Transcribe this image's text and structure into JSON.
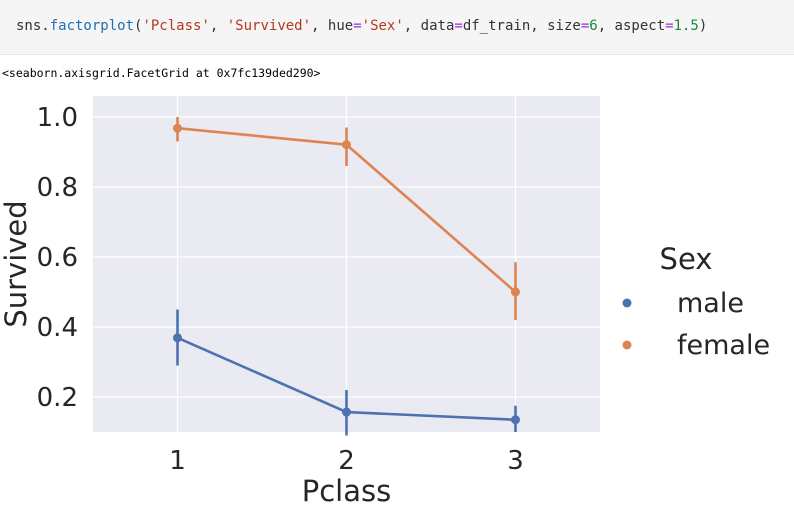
{
  "code_cell": {
    "segments": [
      {
        "text": "sns.",
        "cls": ""
      },
      {
        "text": "factorplot",
        "cls": "tok-fn"
      },
      {
        "text": "(",
        "cls": ""
      },
      {
        "text": "'Pclass'",
        "cls": "tok-str"
      },
      {
        "text": ", ",
        "cls": ""
      },
      {
        "text": "'Survived'",
        "cls": "tok-str"
      },
      {
        "text": ", hue",
        "cls": ""
      },
      {
        "text": "=",
        "cls": "tok-op"
      },
      {
        "text": "'Sex'",
        "cls": "tok-str"
      },
      {
        "text": ", data",
        "cls": ""
      },
      {
        "text": "=",
        "cls": "tok-op"
      },
      {
        "text": "df_train, size",
        "cls": ""
      },
      {
        "text": "=",
        "cls": "tok-op"
      },
      {
        "text": "6",
        "cls": "tok-num"
      },
      {
        "text": ", aspect",
        "cls": ""
      },
      {
        "text": "=",
        "cls": "tok-op"
      },
      {
        "text": "1.5",
        "cls": "tok-num"
      },
      {
        "text": ")",
        "cls": ""
      }
    ]
  },
  "output_text": "<seaborn.axisgrid.FacetGrid at 0x7fc139ded290>",
  "chart_data": {
    "type": "line",
    "x": [
      "1",
      "2",
      "3"
    ],
    "xlabel": "Pclass",
    "ylabel": "Survived",
    "yticks": [
      "0.2",
      "0.4",
      "0.6",
      "0.8",
      "1.0"
    ],
    "ylim": [
      0.1,
      1.06
    ],
    "grid": true,
    "legend_title": "Sex",
    "legend_position": "right",
    "series": [
      {
        "name": "male",
        "color": "#4c72b0",
        "values": [
          0.369,
          0.157,
          0.135
        ],
        "ci": [
          [
            0.29,
            0.45
          ],
          [
            0.09,
            0.22
          ],
          [
            0.1,
            0.175
          ]
        ]
      },
      {
        "name": "female",
        "color": "#dd8452",
        "values": [
          0.968,
          0.921,
          0.5
        ],
        "ci": [
          [
            0.93,
            1.0
          ],
          [
            0.86,
            0.97
          ],
          [
            0.42,
            0.585
          ]
        ]
      }
    ],
    "background_color": "#eaeaf2"
  }
}
